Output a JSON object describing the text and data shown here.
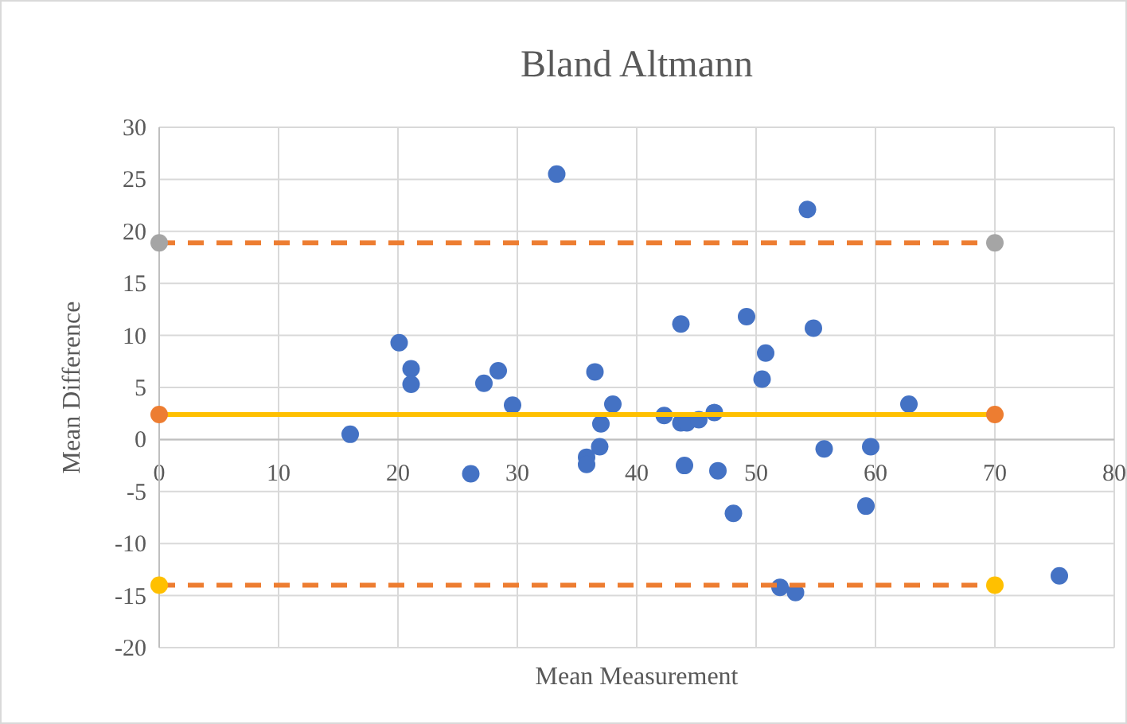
{
  "chart_data": {
    "type": "scatter",
    "title": "Bland Altmann",
    "xlabel": "Mean Measurement",
    "ylabel": "Mean Difference",
    "xlim": [
      0,
      80
    ],
    "xticks": [
      0,
      10,
      20,
      30,
      40,
      50,
      60,
      70,
      80
    ],
    "ylim": [
      -20,
      30
    ],
    "yticks": [
      -20,
      -15,
      -10,
      -5,
      0,
      5,
      10,
      15,
      20,
      25,
      30
    ],
    "grid": true,
    "marker": "circle",
    "series": [
      {
        "type": "scatter",
        "color": "#4472c4",
        "x": [
          16.0,
          20.1,
          21.1,
          21.1,
          26.1,
          27.2,
          28.4,
          29.6,
          33.3,
          36.5,
          38.0,
          37.0,
          36.9,
          35.8,
          35.8,
          42.3,
          43.7,
          44.2,
          45.2,
          46.5,
          43.7,
          49.2,
          54.3,
          54.8,
          50.8,
          50.5,
          62.8,
          55.7,
          59.6,
          44.0,
          46.8,
          48.1,
          59.2,
          52.0,
          53.3,
          75.4
        ],
        "values": [
          0.5,
          9.3,
          6.8,
          5.3,
          -3.3,
          5.4,
          6.6,
          3.3,
          25.5,
          6.5,
          3.4,
          1.5,
          -0.7,
          -1.7,
          -2.4,
          2.3,
          1.6,
          1.6,
          1.9,
          2.6,
          11.1,
          11.8,
          22.1,
          10.7,
          8.3,
          5.8,
          3.4,
          -0.9,
          -0.7,
          -2.5,
          -3.0,
          -7.1,
          -6.4,
          -14.2,
          -14.7,
          -13.1
        ]
      },
      {
        "type": "line",
        "color": "#ed7d31",
        "line_style": "dashed",
        "x": [
          0,
          70
        ],
        "values": [
          18.9,
          18.9
        ],
        "colors": [
          "#a5a5a5",
          "#a5a5a5"
        ]
      },
      {
        "type": "line",
        "color": "#ffc000",
        "line_style": "solid",
        "x": [
          0,
          70
        ],
        "values": [
          2.4,
          2.4
        ],
        "colors": [
          "#ed7d31",
          "#ed7d31"
        ]
      },
      {
        "type": "line",
        "color": "#ed7d31",
        "line_style": "dashed",
        "x": [
          0,
          70
        ],
        "values": [
          -14.0,
          -14.0
        ],
        "colors": [
          "#ffc000",
          "#ffc000"
        ]
      }
    ]
  }
}
